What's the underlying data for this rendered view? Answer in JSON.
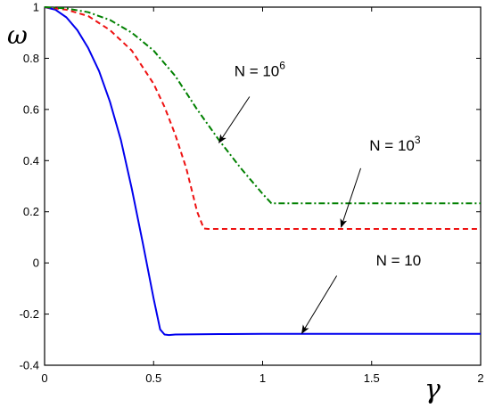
{
  "chart_data": {
    "type": "line",
    "title": "",
    "xlabel": "γ",
    "ylabel": "ω",
    "xlim": [
      0,
      2
    ],
    "ylim": [
      -0.4,
      1
    ],
    "xticks": [
      0,
      0.5,
      1,
      1.5,
      2
    ],
    "xtick_labels": [
      "0",
      "0.5",
      "1",
      "1.5",
      "2"
    ],
    "yticks": [
      -0.4,
      -0.2,
      0,
      0.2,
      0.4,
      0.6,
      0.8,
      1
    ],
    "ytick_labels": [
      "-0.4",
      "-0.2",
      "0",
      "0.2",
      "0.4",
      "0.6",
      "0.8",
      "1"
    ],
    "grid": false,
    "legend": "none",
    "series": [
      {
        "style": "solid",
        "color": "#0000ee",
        "x": [
          0,
          0.05,
          0.1,
          0.15,
          0.2,
          0.25,
          0.3,
          0.35,
          0.4,
          0.45,
          0.5,
          0.53,
          0.55,
          0.57,
          0.6,
          0.8,
          1.0,
          1.5,
          2.0
        ],
        "y": [
          1.0,
          0.99,
          0.96,
          0.91,
          0.84,
          0.75,
          0.63,
          0.48,
          0.29,
          0.08,
          -0.14,
          -0.26,
          -0.28,
          -0.282,
          -0.28,
          -0.278,
          -0.277,
          -0.277,
          -0.277
        ]
      },
      {
        "style": "dashed",
        "color": "#ee1111",
        "x": [
          0,
          0.1,
          0.2,
          0.3,
          0.4,
          0.5,
          0.55,
          0.6,
          0.65,
          0.7,
          0.73,
          0.75,
          1.0,
          1.5,
          2.0
        ],
        "y": [
          1.0,
          0.99,
          0.965,
          0.91,
          0.83,
          0.7,
          0.61,
          0.5,
          0.37,
          0.2,
          0.135,
          0.133,
          0.133,
          0.133,
          0.133
        ]
      },
      {
        "style": "dash-dot",
        "color": "#008000",
        "x": [
          0,
          0.1,
          0.2,
          0.3,
          0.4,
          0.5,
          0.6,
          0.7,
          0.8,
          0.9,
          1.0,
          1.04,
          1.1,
          1.5,
          2.0
        ],
        "y": [
          1.0,
          0.995,
          0.98,
          0.95,
          0.9,
          0.83,
          0.73,
          0.6,
          0.48,
          0.37,
          0.27,
          0.233,
          0.233,
          0.233,
          0.233
        ]
      }
    ],
    "annotations": [
      {
        "label_base": "N = 10",
        "exponent": "6",
        "text_at": [
          0.87,
          0.73
        ],
        "arrow_from": [
          0.94,
          0.65
        ],
        "arrow_to": [
          0.8,
          0.47
        ]
      },
      {
        "label_base": "N = 10",
        "exponent": "3",
        "text_at": [
          1.49,
          0.44
        ],
        "arrow_from": [
          1.45,
          0.37
        ],
        "arrow_to": [
          1.36,
          0.14
        ]
      },
      {
        "label_base": "N = 10",
        "exponent": "",
        "text_at": [
          1.52,
          -0.01
        ],
        "arrow_from": [
          1.34,
          -0.05
        ],
        "arrow_to": [
          1.18,
          -0.275
        ]
      }
    ]
  }
}
